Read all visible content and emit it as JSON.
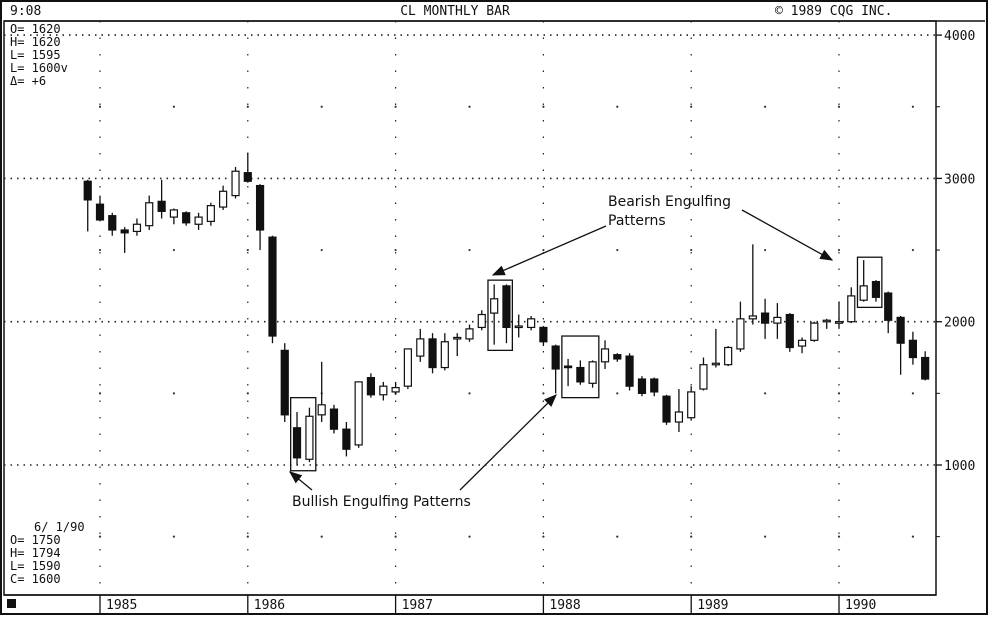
{
  "header": {
    "time": "9:08",
    "title": "CL MONTHLY BAR",
    "copyright": "©  1989 CQG INC."
  },
  "last_bar": {
    "o": "O= 1620",
    "h": "H= 1620",
    "l": "L= 1595",
    "l2": "L= 1600v",
    "d": "Δ=    +6"
  },
  "cursor_bar": {
    "date": "6/ 1/90",
    "o": "O= 1750",
    "h": "H= 1794",
    "l": "L= 1590",
    "c": "C= 1600"
  },
  "annotations": {
    "bearish_line1": "Bearish Engulfing",
    "bearish_line2": "Patterns",
    "bullish": "Bullish Engulfing Patterns"
  },
  "colors": {
    "ink": "#111111",
    "background": "#ffffff"
  },
  "chart_data": {
    "type": "candlestick",
    "title": "CL MONTHLY BAR",
    "xlabel": "",
    "ylabel": "",
    "ylim": [
      0,
      4100
    ],
    "yticks": [
      1000,
      2000,
      3000,
      4000
    ],
    "ytick_labels": [
      "1000",
      "2000",
      "3000",
      "4000"
    ],
    "grid": true,
    "x_start_year": 1984.75,
    "x_end_year": 1990.75,
    "year_labels": [
      {
        "year": 1985,
        "label": "1985"
      },
      {
        "year": 1986,
        "label": "1986"
      },
      {
        "year": 1987,
        "label": "1987"
      },
      {
        "year": 1988,
        "label": "1988"
      },
      {
        "year": 1989,
        "label": "1989"
      },
      {
        "year": 1990,
        "label": "1990"
      }
    ],
    "candles": [
      {
        "t": 1984.917,
        "o": 2980,
        "h": 2990,
        "l": 2630,
        "c": 2850
      },
      {
        "t": 1985.0,
        "o": 2820,
        "h": 2880,
        "l": 2700,
        "c": 2710
      },
      {
        "t": 1985.083,
        "o": 2740,
        "h": 2760,
        "l": 2600,
        "c": 2640
      },
      {
        "t": 1985.167,
        "o": 2640,
        "h": 2660,
        "l": 2480,
        "c": 2620
      },
      {
        "t": 1985.25,
        "o": 2630,
        "h": 2720,
        "l": 2600,
        "c": 2680
      },
      {
        "t": 1985.333,
        "o": 2670,
        "h": 2880,
        "l": 2640,
        "c": 2830
      },
      {
        "t": 1985.417,
        "o": 2840,
        "h": 2990,
        "l": 2720,
        "c": 2770
      },
      {
        "t": 1985.5,
        "o": 2730,
        "h": 2790,
        "l": 2680,
        "c": 2780
      },
      {
        "t": 1985.583,
        "o": 2760,
        "h": 2770,
        "l": 2670,
        "c": 2690
      },
      {
        "t": 1985.667,
        "o": 2680,
        "h": 2760,
        "l": 2640,
        "c": 2730
      },
      {
        "t": 1985.75,
        "o": 2700,
        "h": 2830,
        "l": 2670,
        "c": 2810
      },
      {
        "t": 1985.833,
        "o": 2800,
        "h": 2950,
        "l": 2780,
        "c": 2910
      },
      {
        "t": 1985.917,
        "o": 2880,
        "h": 3080,
        "l": 2860,
        "c": 3050
      },
      {
        "t": 1986.0,
        "o": 3040,
        "h": 3180,
        "l": 2970,
        "c": 2980
      },
      {
        "t": 1986.083,
        "o": 2950,
        "h": 2960,
        "l": 2500,
        "c": 2640
      },
      {
        "t": 1986.167,
        "o": 2590,
        "h": 2600,
        "l": 1850,
        "c": 1900
      },
      {
        "t": 1986.25,
        "o": 1800,
        "h": 1850,
        "l": 1300,
        "c": 1350
      },
      {
        "t": 1986.333,
        "o": 1260,
        "h": 1370,
        "l": 1000,
        "c": 1050
      },
      {
        "t": 1986.417,
        "o": 1040,
        "h": 1400,
        "l": 1020,
        "c": 1340
      },
      {
        "t": 1986.5,
        "o": 1350,
        "h": 1720,
        "l": 1300,
        "c": 1420
      },
      {
        "t": 1986.583,
        "o": 1390,
        "h": 1420,
        "l": 1220,
        "c": 1250
      },
      {
        "t": 1986.667,
        "o": 1250,
        "h": 1300,
        "l": 1060,
        "c": 1110
      },
      {
        "t": 1986.75,
        "o": 1140,
        "h": 1580,
        "l": 1120,
        "c": 1580
      },
      {
        "t": 1986.833,
        "o": 1610,
        "h": 1640,
        "l": 1470,
        "c": 1490
      },
      {
        "t": 1986.917,
        "o": 1490,
        "h": 1580,
        "l": 1450,
        "c": 1550
      },
      {
        "t": 1987.0,
        "o": 1510,
        "h": 1580,
        "l": 1490,
        "c": 1540
      },
      {
        "t": 1987.083,
        "o": 1550,
        "h": 1810,
        "l": 1530,
        "c": 1810
      },
      {
        "t": 1987.167,
        "o": 1760,
        "h": 1950,
        "l": 1720,
        "c": 1880
      },
      {
        "t": 1987.25,
        "o": 1880,
        "h": 1920,
        "l": 1640,
        "c": 1680
      },
      {
        "t": 1987.333,
        "o": 1680,
        "h": 1920,
        "l": 1660,
        "c": 1860
      },
      {
        "t": 1987.417,
        "o": 1880,
        "h": 1920,
        "l": 1760,
        "c": 1890
      },
      {
        "t": 1987.5,
        "o": 1880,
        "h": 1980,
        "l": 1860,
        "c": 1950
      },
      {
        "t": 1987.583,
        "o": 1960,
        "h": 2080,
        "l": 1940,
        "c": 2050
      },
      {
        "t": 1987.667,
        "o": 2060,
        "h": 2260,
        "l": 1840,
        "c": 2160
      },
      {
        "t": 1987.75,
        "o": 2250,
        "h": 2260,
        "l": 1850,
        "c": 1960
      },
      {
        "t": 1987.833,
        "o": 1960,
        "h": 2050,
        "l": 1890,
        "c": 1970
      },
      {
        "t": 1987.917,
        "o": 1960,
        "h": 2040,
        "l": 1940,
        "c": 2020
      },
      {
        "t": 1988.0,
        "o": 1960,
        "h": 1970,
        "l": 1830,
        "c": 1860
      },
      {
        "t": 1988.083,
        "o": 1830,
        "h": 1840,
        "l": 1500,
        "c": 1670
      },
      {
        "t": 1988.167,
        "o": 1690,
        "h": 1740,
        "l": 1550,
        "c": 1680
      },
      {
        "t": 1988.25,
        "o": 1680,
        "h": 1730,
        "l": 1560,
        "c": 1580
      },
      {
        "t": 1988.333,
        "o": 1570,
        "h": 1730,
        "l": 1540,
        "c": 1720
      },
      {
        "t": 1988.417,
        "o": 1720,
        "h": 1870,
        "l": 1670,
        "c": 1810
      },
      {
        "t": 1988.5,
        "o": 1770,
        "h": 1780,
        "l": 1720,
        "c": 1740
      },
      {
        "t": 1988.583,
        "o": 1760,
        "h": 1780,
        "l": 1520,
        "c": 1550
      },
      {
        "t": 1988.667,
        "o": 1600,
        "h": 1620,
        "l": 1480,
        "c": 1500
      },
      {
        "t": 1988.75,
        "o": 1600,
        "h": 1610,
        "l": 1480,
        "c": 1510
      },
      {
        "t": 1988.833,
        "o": 1480,
        "h": 1490,
        "l": 1280,
        "c": 1300
      },
      {
        "t": 1988.917,
        "o": 1300,
        "h": 1530,
        "l": 1230,
        "c": 1370
      },
      {
        "t": 1989.0,
        "o": 1330,
        "h": 1550,
        "l": 1310,
        "c": 1510
      },
      {
        "t": 1989.083,
        "o": 1530,
        "h": 1750,
        "l": 1520,
        "c": 1700
      },
      {
        "t": 1989.167,
        "o": 1700,
        "h": 1950,
        "l": 1680,
        "c": 1710
      },
      {
        "t": 1989.25,
        "o": 1700,
        "h": 1830,
        "l": 1690,
        "c": 1820
      },
      {
        "t": 1989.333,
        "o": 1810,
        "h": 2140,
        "l": 1790,
        "c": 2020
      },
      {
        "t": 1989.417,
        "o": 2020,
        "h": 2540,
        "l": 1980,
        "c": 2040
      },
      {
        "t": 1989.5,
        "o": 2060,
        "h": 2160,
        "l": 1880,
        "c": 1990
      },
      {
        "t": 1989.583,
        "o": 1990,
        "h": 2130,
        "l": 1880,
        "c": 2030
      },
      {
        "t": 1989.667,
        "o": 2050,
        "h": 2060,
        "l": 1790,
        "c": 1820
      },
      {
        "t": 1989.75,
        "o": 1830,
        "h": 1890,
        "l": 1780,
        "c": 1870
      },
      {
        "t": 1989.833,
        "o": 1870,
        "h": 2000,
        "l": 1860,
        "c": 1990
      },
      {
        "t": 1989.917,
        "o": 2000,
        "h": 2020,
        "l": 1950,
        "c": 2010
      },
      {
        "t": 1990.0,
        "o": 1990,
        "h": 2140,
        "l": 1950,
        "c": 2000
      },
      {
        "t": 1990.083,
        "o": 2000,
        "h": 2240,
        "l": 1990,
        "c": 2180
      },
      {
        "t": 1990.167,
        "o": 2150,
        "h": 2430,
        "l": 2140,
        "c": 2250
      },
      {
        "t": 1990.25,
        "o": 2280,
        "h": 2290,
        "l": 2140,
        "c": 2170
      },
      {
        "t": 1990.333,
        "o": 2200,
        "h": 2210,
        "l": 1920,
        "c": 2010
      },
      {
        "t": 1990.417,
        "o": 2030,
        "h": 2040,
        "l": 1630,
        "c": 1850
      },
      {
        "t": 1990.5,
        "o": 1870,
        "h": 1930,
        "l": 1700,
        "c": 1750
      },
      {
        "t": 1990.583,
        "o": 1750,
        "h": 1794,
        "l": 1590,
        "c": 1600
      }
    ],
    "pattern_boxes": [
      {
        "kind": "bullish",
        "t0": 1986.29,
        "t1": 1986.46,
        "low": 960,
        "high": 1470
      },
      {
        "kind": "bearish",
        "t0": 1987.625,
        "t1": 1987.79,
        "low": 1800,
        "high": 2290
      },
      {
        "kind": "bullish",
        "t0": 1988.125,
        "t1": 1988.375,
        "low": 1470,
        "high": 1900
      },
      {
        "kind": "bearish",
        "t0": 1990.125,
        "t1": 1990.29,
        "low": 2100,
        "high": 2450
      }
    ]
  }
}
